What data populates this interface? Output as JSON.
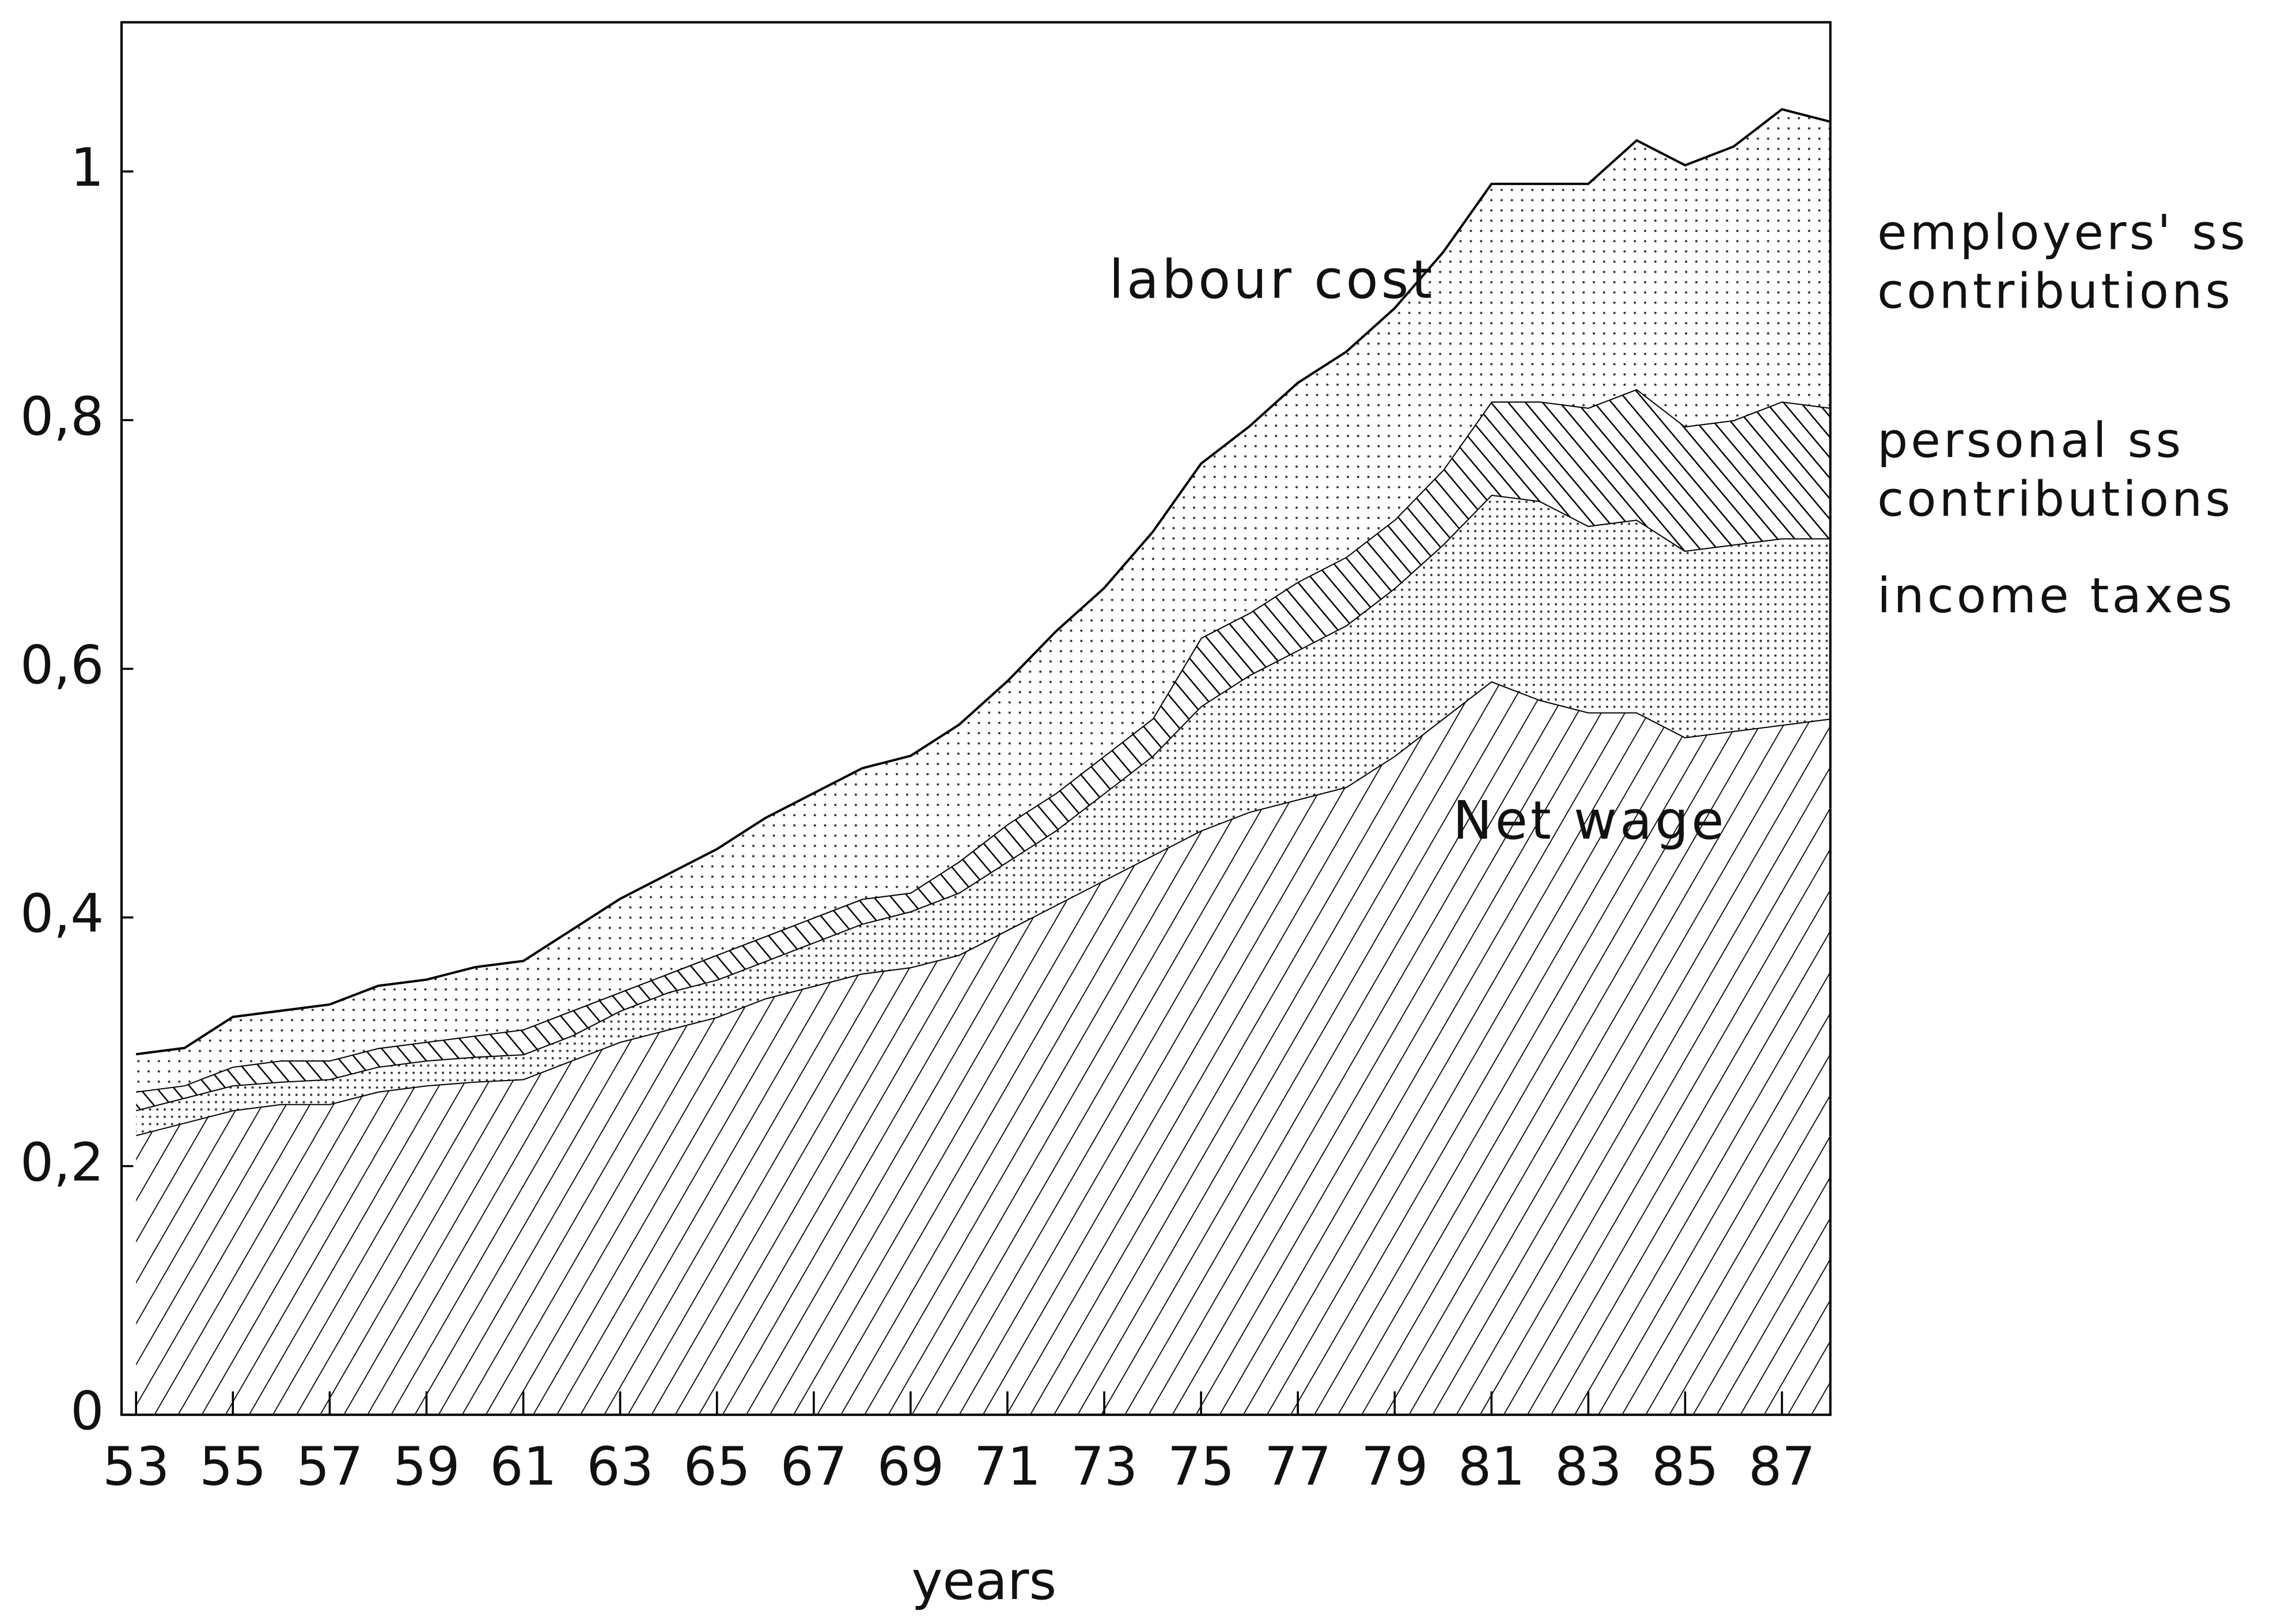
{
  "chart_data": {
    "type": "stacked-area",
    "xlabel": "years",
    "x": [
      53,
      54,
      55,
      56,
      57,
      58,
      59,
      60,
      61,
      62,
      63,
      64,
      65,
      66,
      67,
      68,
      69,
      70,
      71,
      72,
      73,
      74,
      75,
      76,
      77,
      78,
      79,
      80,
      81,
      82,
      83,
      84,
      85,
      86,
      87,
      88
    ],
    "xlim": [
      52.7,
      88
    ],
    "xticks": [
      53,
      55,
      57,
      59,
      61,
      63,
      65,
      67,
      69,
      71,
      73,
      75,
      77,
      79,
      81,
      83,
      85,
      87
    ],
    "ylim": [
      0,
      1.12
    ],
    "yticks": [
      0,
      {
        "value": 0.2,
        "label": "0,2"
      },
      {
        "value": 0.4,
        "label": "0,4"
      },
      {
        "value": 0.6,
        "label": "0,6"
      },
      {
        "value": 0.8,
        "label": "0,8"
      },
      1
    ],
    "annotations": [
      {
        "text": "labour cost",
        "x": 73.1,
        "y": 0.91
      },
      {
        "text": "Net wage",
        "x": 80.2,
        "y": 0.475
      }
    ],
    "series": [
      {
        "name": "Net wage",
        "color": "#000000",
        "pattern": "hatch-right",
        "values": [
          0.225,
          0.235,
          0.245,
          0.25,
          0.25,
          0.26,
          0.265,
          0.268,
          0.27,
          0.285,
          0.3,
          0.31,
          0.32,
          0.335,
          0.345,
          0.355,
          0.36,
          0.37,
          0.39,
          0.41,
          0.43,
          0.45,
          0.47,
          0.485,
          0.495,
          0.505,
          0.53,
          0.56,
          0.59,
          0.575,
          0.565,
          0.565,
          0.545,
          0.55,
          0.555,
          0.56
        ]
      },
      {
        "name": "income taxes",
        "color": "#000000",
        "pattern": "dots-dense",
        "values": [
          0.02,
          0.02,
          0.02,
          0.018,
          0.02,
          0.02,
          0.02,
          0.02,
          0.02,
          0.02,
          0.025,
          0.03,
          0.03,
          0.03,
          0.035,
          0.04,
          0.045,
          0.05,
          0.055,
          0.06,
          0.07,
          0.08,
          0.1,
          0.11,
          0.12,
          0.13,
          0.135,
          0.14,
          0.15,
          0.16,
          0.15,
          0.155,
          0.15,
          0.15,
          0.15,
          0.145
        ]
      },
      {
        "name": "personal ss contributions",
        "color": "#000000",
        "pattern": "hatch-left",
        "values": [
          0.015,
          0.01,
          0.015,
          0.017,
          0.015,
          0.015,
          0.015,
          0.017,
          0.02,
          0.02,
          0.015,
          0.015,
          0.02,
          0.02,
          0.02,
          0.02,
          0.015,
          0.025,
          0.03,
          0.03,
          0.03,
          0.03,
          0.055,
          0.05,
          0.055,
          0.055,
          0.055,
          0.06,
          0.075,
          0.08,
          0.095,
          0.105,
          0.1,
          0.1,
          0.11,
          0.105
        ]
      },
      {
        "name": "employers' ss contributions",
        "color": "#000000",
        "pattern": "dots-sparse",
        "values": [
          0.03,
          0.03,
          0.04,
          0.04,
          0.045,
          0.05,
          0.05,
          0.055,
          0.055,
          0.065,
          0.075,
          0.08,
          0.085,
          0.095,
          0.1,
          0.105,
          0.11,
          0.11,
          0.115,
          0.13,
          0.135,
          0.15,
          0.14,
          0.15,
          0.16,
          0.165,
          0.17,
          0.175,
          0.175,
          0.175,
          0.18,
          0.2,
          0.21,
          0.22,
          0.235,
          0.23
        ]
      }
    ]
  }
}
